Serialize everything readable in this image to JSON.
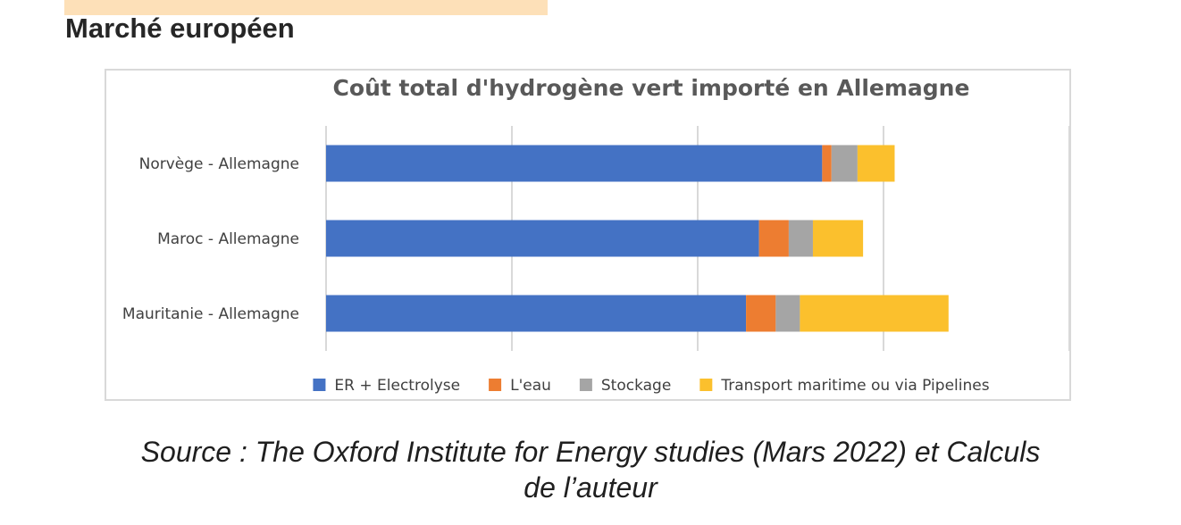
{
  "heading": "Marché européen",
  "source": {
    "line1": "Source : The Oxford Institute for Energy studies (Mars 2022) et Calculs",
    "line2": "de l’auteur"
  },
  "colors": {
    "strip": "#fde0b8",
    "series": [
      "#4472c4",
      "#ed7d31",
      "#a5a5a5",
      "#fbc02d"
    ]
  },
  "chart_data": {
    "type": "bar",
    "orientation": "horizontal",
    "stacked": true,
    "title": "Coût total d'hydrogène vert importé en Allemagne",
    "categories": [
      "Norvège - Allemagne",
      "Maroc - Allemagne",
      "Mauritanie - Allemagne"
    ],
    "series": [
      {
        "name": "ER + Electrolyse",
        "values": [
          2.67,
          2.33,
          2.26
        ]
      },
      {
        "name": "L'eau",
        "values": [
          0.05,
          0.16,
          0.16
        ]
      },
      {
        "name": "Stockage",
        "values": [
          0.14,
          0.13,
          0.13
        ]
      },
      {
        "name": "Transport maritime ou via Pipelines",
        "values": [
          0.2,
          0.27,
          0.8
        ]
      }
    ],
    "xlim": [
      0,
      4
    ],
    "grid": true,
    "legend_position": "bottom",
    "value_axis_labels_shown": false
  }
}
